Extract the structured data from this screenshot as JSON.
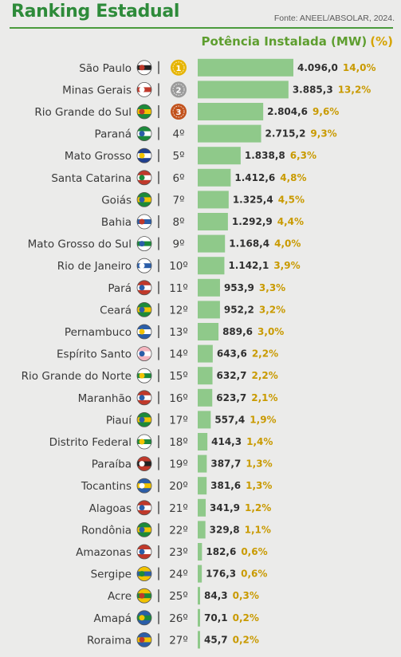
{
  "header": {
    "title": "Ranking Estadual",
    "source": "Fonte: ANEEL/ABSOLAR, 2024.",
    "subtitle": "Potência Instalada (MW)",
    "subtitle_pct": "(%)"
  },
  "colors": {
    "title": "#2e8b3a",
    "bar": "#8fc98a",
    "percent": "#c99a00",
    "rule": "#4a9b3c",
    "medal_gold": "#e6b400",
    "medal_silver": "#9a9a9a",
    "medal_bronze": "#c2521c"
  },
  "chart_data": {
    "type": "bar",
    "orientation": "horizontal",
    "categories": [
      "São Paulo",
      "Minas Gerais",
      "Rio Grande do Sul",
      "Paraná",
      "Mato Grosso",
      "Santa Catarina",
      "Goiás",
      "Bahia",
      "Mato Grosso do Sul",
      "Rio de Janeiro",
      "Pará",
      "Ceará",
      "Pernambuco",
      "Espírito Santo",
      "Rio Grande do Norte",
      "Maranhão",
      "Piauí",
      "Distrito Federal",
      "Paraíba",
      "Tocantins",
      "Alagoas",
      "Rondônia",
      "Amazonas",
      "Sergipe",
      "Acre",
      "Amapá",
      "Roraima"
    ],
    "ranks": [
      "1º",
      "2º",
      "3º",
      "4º",
      "5º",
      "6º",
      "7º",
      "8º",
      "9º",
      "10º",
      "11º",
      "12º",
      "13º",
      "14º",
      "15º",
      "16º",
      "17º",
      "18º",
      "19º",
      "20º",
      "21º",
      "22º",
      "23º",
      "24º",
      "25º",
      "26º",
      "27º"
    ],
    "values": [
      4096.0,
      3885.3,
      2804.6,
      2715.2,
      1838.8,
      1412.6,
      1325.4,
      1292.9,
      1168.4,
      1142.1,
      953.9,
      952.2,
      889.6,
      643.6,
      632.7,
      623.7,
      557.4,
      414.3,
      387.7,
      381.6,
      341.9,
      329.8,
      182.6,
      176.3,
      84.3,
      70.1,
      45.7
    ],
    "value_labels": [
      "4.096,0",
      "3.885,3",
      "2.804,6",
      "2.715,2",
      "1.838,8",
      "1.412,6",
      "1.325,4",
      "1.292,9",
      "1.168,4",
      "1.142,1",
      "953,9",
      "952,2",
      "889,6",
      "643,6",
      "632,7",
      "623,7",
      "557,4",
      "414,3",
      "387,7",
      "381,6",
      "341,9",
      "329,8",
      "182,6",
      "176,3",
      "84,3",
      "70,1",
      "45,7"
    ],
    "percent_labels": [
      "14,0%",
      "13,2%",
      "9,6%",
      "9,3%",
      "6,3%",
      "4,8%",
      "4,5%",
      "4,4%",
      "4,0%",
      "3,9%",
      "3,3%",
      "3,2%",
      "3,0%",
      "2,2%",
      "2,2%",
      "2,1%",
      "1,9%",
      "1,4%",
      "1,3%",
      "1,3%",
      "1,2%",
      "1,1%",
      "0,6%",
      "0,6%",
      "0,3%",
      "0,2%",
      "0,2%"
    ],
    "medals": [
      "gold",
      "silver",
      "bronze"
    ],
    "flag_icons": [
      "sao-paulo-flag-icon",
      "minas-gerais-flag-icon",
      "rio-grande-do-sul-flag-icon",
      "parana-flag-icon",
      "mato-grosso-flag-icon",
      "santa-catarina-flag-icon",
      "goias-flag-icon",
      "bahia-flag-icon",
      "mato-grosso-do-sul-flag-icon",
      "rio-de-janeiro-flag-icon",
      "para-flag-icon",
      "ceara-flag-icon",
      "pernambuco-flag-icon",
      "espirito-santo-flag-icon",
      "rio-grande-do-norte-flag-icon",
      "maranhao-flag-icon",
      "piaui-flag-icon",
      "distrito-federal-flag-icon",
      "paraiba-flag-icon",
      "tocantins-flag-icon",
      "alagoas-flag-icon",
      "rondonia-flag-icon",
      "amazonas-flag-icon",
      "sergipe-flag-icon",
      "acre-flag-icon",
      "amapa-flag-icon",
      "roraima-flag-icon"
    ],
    "xlim": [
      0,
      4096.0
    ],
    "grid": false,
    "legend": "none"
  }
}
